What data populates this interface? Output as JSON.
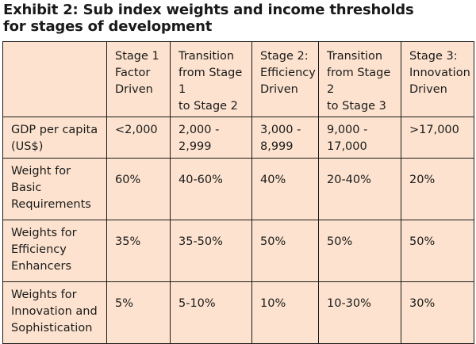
{
  "title": {
    "line1": "Exhibit 2: Sub index weights and income thresholds",
    "line2": "for stages of development"
  },
  "table": {
    "headers": [
      "",
      "Stage 1\nFactor\nDriven",
      "Transition\nfrom Stage 1\nto Stage 2",
      "Stage 2:\nEfficiency\nDriven",
      "Transition\nfrom Stage 2\nto Stage 3",
      "Stage 3:\nInnovation\nDriven"
    ],
    "rows": [
      [
        "GDP per capita\n(US$)",
        "<2,000",
        "2,000 -\n2,999",
        "3,000 -\n8,999",
        "9,000 -\n17,000",
        ">17,000"
      ],
      [
        "Weight for\nBasic\nRequirements",
        "60%",
        "40-60%",
        "40%",
        "20-40%",
        "20%"
      ],
      [
        "Weights for\nEfficiency\nEnhancers",
        "35%",
        "35-50%",
        "50%",
        "50%",
        "50%"
      ],
      [
        "Weights for\nInnovation and\nSophistication",
        "5%",
        "5-10%",
        "10%",
        "10-30%",
        "30%"
      ]
    ]
  },
  "colors": {
    "table_background": "#fde3cf",
    "border": "#1a1a1a",
    "text": "#1a1a1a"
  }
}
